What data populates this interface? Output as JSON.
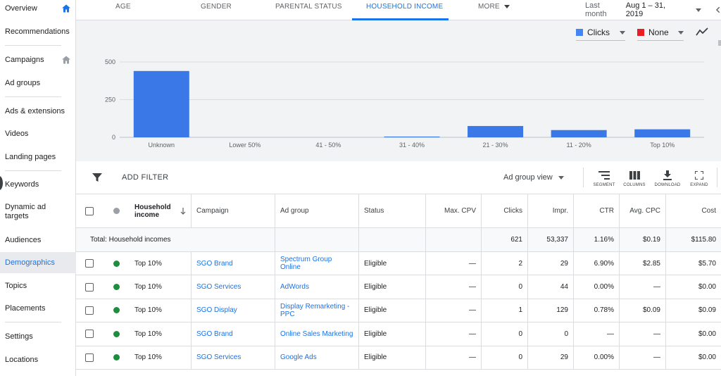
{
  "sidebar": {
    "items": [
      {
        "label": "Overview",
        "home": true
      },
      {
        "label": "Recommendations"
      },
      {
        "label": "Campaigns",
        "home": true
      },
      {
        "label": "Ad groups"
      },
      {
        "label": "Ads & extensions"
      },
      {
        "label": "Videos"
      },
      {
        "label": "Landing pages"
      },
      {
        "label": "Keywords"
      },
      {
        "label": "Dynamic ad targets"
      },
      {
        "label": "Audiences"
      },
      {
        "label": "Demographics",
        "active": true
      },
      {
        "label": "Topics"
      },
      {
        "label": "Placements"
      },
      {
        "label": "Settings"
      },
      {
        "label": "Locations"
      }
    ]
  },
  "tabs": {
    "age": "AGE",
    "gender": "GENDER",
    "parental": "PARENTAL STATUS",
    "income": "HOUSEHOLD INCOME",
    "more": "MORE"
  },
  "daterange": {
    "label": "Last month",
    "value": "Aug 1 – 31, 2019"
  },
  "metrics": {
    "primary": {
      "label": "Clicks",
      "color": "#4285f4"
    },
    "secondary": {
      "label": "None",
      "color": "#ea1c24"
    }
  },
  "chart_data": {
    "type": "bar",
    "categories": [
      "Unknown",
      "Lower 50%",
      "41 - 50%",
      "31 - 40%",
      "21 - 30%",
      "11 - 20%",
      "Top 10%"
    ],
    "series": [
      {
        "values": [
          440,
          0,
          0,
          5,
          75,
          48,
          53
        ]
      }
    ],
    "yticks": [
      "0",
      "250",
      "500"
    ],
    "ylim": [
      0,
      500
    ],
    "bar_color": "#3b78e7"
  },
  "filter": {
    "label": "ADD FILTER",
    "view": "Ad group view"
  },
  "tools": {
    "segment": "SEGMENT",
    "columns": "COLUMNS",
    "download": "DOWNLOAD",
    "expand": "EXPAND"
  },
  "table": {
    "headers": {
      "income": "Household income",
      "campaign": "Campaign",
      "adgroup": "Ad group",
      "status": "Status",
      "maxcpv": "Max. CPV",
      "clicks": "Clicks",
      "impr": "Impr.",
      "ctr": "CTR",
      "avgcpc": "Avg. CPC",
      "cost": "Cost"
    },
    "total": {
      "label": "Total: Household incomes",
      "clicks": "621",
      "impr": "53,337",
      "ctr": "1.16%",
      "avgcpc": "$0.19",
      "cost": "$115.80"
    },
    "rows": [
      {
        "income": "Top 10%",
        "campaign": "SGO Brand",
        "adgroup": "Spectrum Group Online",
        "status": "Eligible",
        "maxcpv": "—",
        "clicks": "2",
        "impr": "29",
        "ctr": "6.90%",
        "avgcpc": "$2.85",
        "cost": "$5.70"
      },
      {
        "income": "Top 10%",
        "campaign": "SGO Services",
        "adgroup": "AdWords",
        "status": "Eligible",
        "maxcpv": "—",
        "clicks": "0",
        "impr": "44",
        "ctr": "0.00%",
        "avgcpc": "—",
        "cost": "$0.00"
      },
      {
        "income": "Top 10%",
        "campaign": "SGO Display",
        "adgroup": "Display Remarketing - PPC",
        "status": "Eligible",
        "maxcpv": "—",
        "clicks": "1",
        "impr": "129",
        "ctr": "0.78%",
        "avgcpc": "$0.09",
        "cost": "$0.09"
      },
      {
        "income": "Top 10%",
        "campaign": "SGO Brand",
        "adgroup": "Online Sales Marketing",
        "status": "Eligible",
        "maxcpv": "—",
        "clicks": "0",
        "impr": "0",
        "ctr": "—",
        "avgcpc": "—",
        "cost": "$0.00"
      },
      {
        "income": "Top 10%",
        "campaign": "SGO Services",
        "adgroup": "Google Ads",
        "status": "Eligible",
        "maxcpv": "—",
        "clicks": "0",
        "impr": "29",
        "ctr": "0.00%",
        "avgcpc": "—",
        "cost": "$0.00"
      }
    ],
    "status_color": "#1e8e3e"
  }
}
